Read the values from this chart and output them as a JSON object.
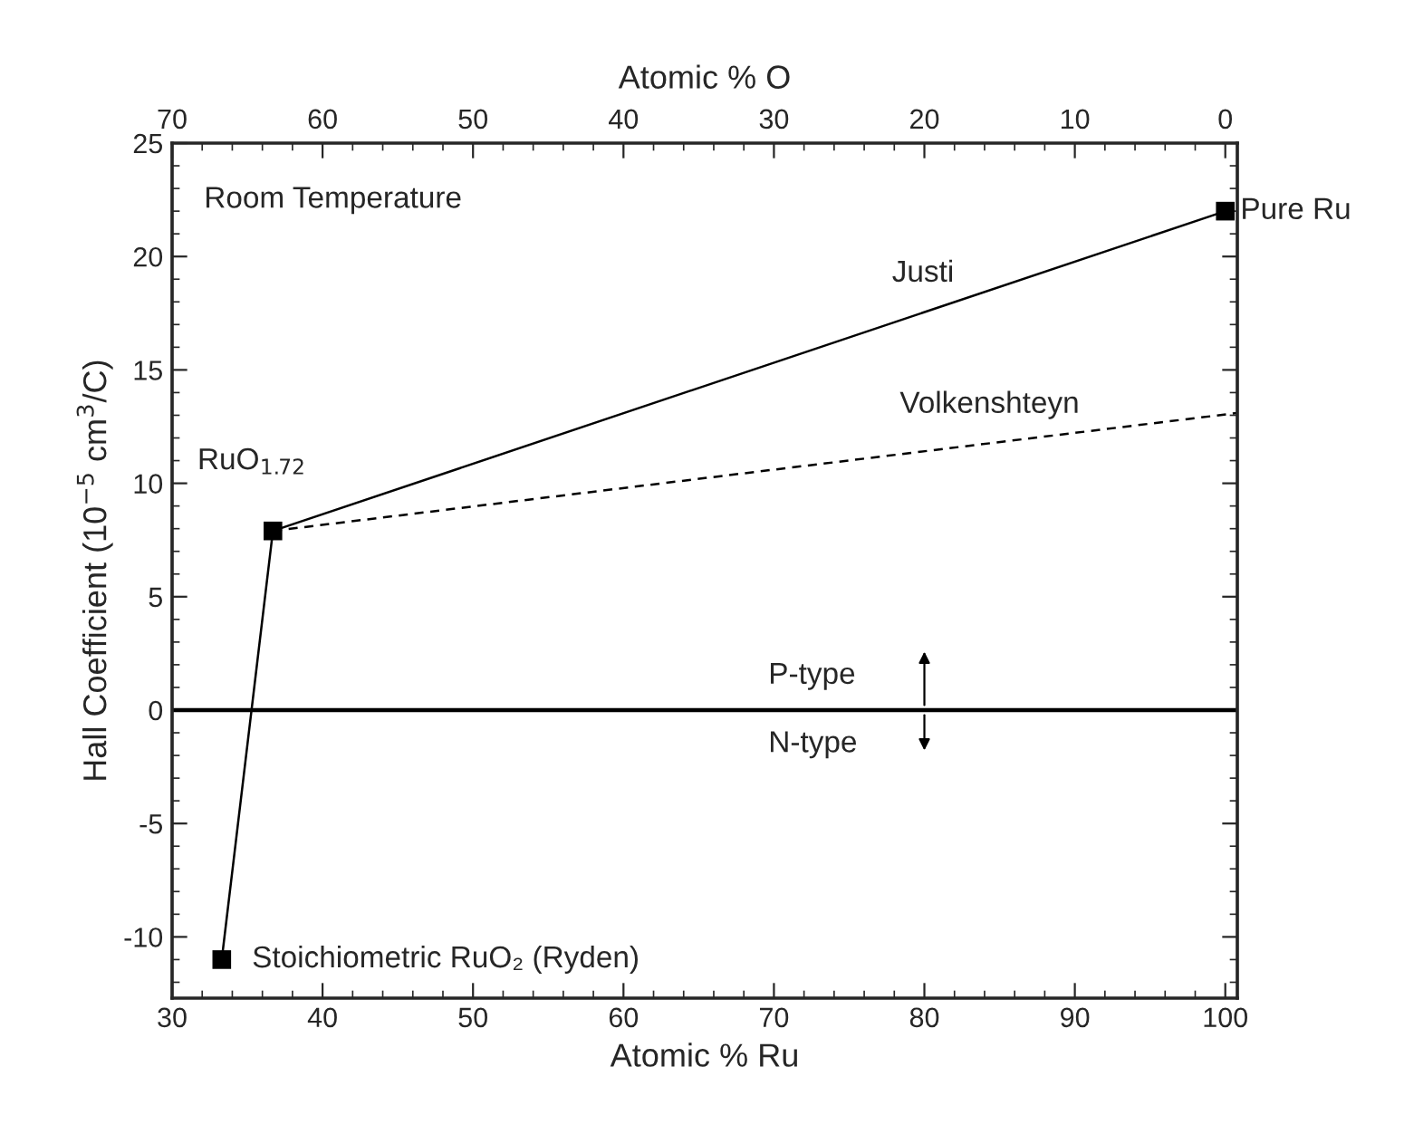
{
  "chart_data": {
    "type": "line",
    "xlabel": "Atomic % Ru",
    "ylabel": "Hall Coefficient (10$^{−5}$ cm$^{3}$/C)",
    "x2label": "Atomic % O",
    "xlim": [
      30,
      100.8
    ],
    "xticks": [
      30,
      40,
      50,
      60,
      70,
      80,
      90,
      100
    ],
    "x2lim": [
      70,
      -0.8
    ],
    "x2ticks": [
      70,
      60,
      50,
      40,
      30,
      20,
      10,
      0
    ],
    "ylim": [
      -12.7,
      25
    ],
    "yticks": [
      -10,
      -5,
      0,
      5,
      10,
      15,
      20,
      25
    ],
    "grid": false,
    "legend": false,
    "series": [
      {
        "color": "#000000",
        "line_style": "solid",
        "marker": "none",
        "x": [
          33.3,
          36.7
        ],
        "values": [
          -11,
          7.9
        ]
      },
      {
        "name": "Justi",
        "color": "#000000",
        "line_style": "solid",
        "marker": "none",
        "x": [
          36.7,
          100
        ],
        "values": [
          7.9,
          22
        ]
      },
      {
        "name": "Volkenshteyn",
        "color": "#000000",
        "line_style": "dashed",
        "marker": "none",
        "x": [
          36.7,
          100.8
        ],
        "values": [
          7.9,
          13.1
        ]
      },
      {
        "type": "scatter",
        "color": "#000000",
        "marker": "square",
        "x": [
          33.3,
          36.7,
          100
        ],
        "values": [
          -11,
          7.9,
          22
        ]
      }
    ],
    "ref_lines": [
      {
        "axis": "y",
        "value": 0,
        "color": "#000000",
        "line_style": "solid"
      }
    ],
    "annotations": [
      "Room Temperature",
      {
        "text": "Pure Ru",
        "x": 100,
        "y": 22
      },
      {
        "text": "RuO$_{1.72}$",
        "x": 36.7,
        "y": 7.9
      },
      {
        "text": "Stoichiometric RuO₂ (Ryden)",
        "x": 33.3,
        "y": -11
      },
      {
        "text": "P-type",
        "x": 80,
        "y": 0
      },
      {
        "text": "N-type",
        "x": 80,
        "y": 0
      }
    ]
  }
}
